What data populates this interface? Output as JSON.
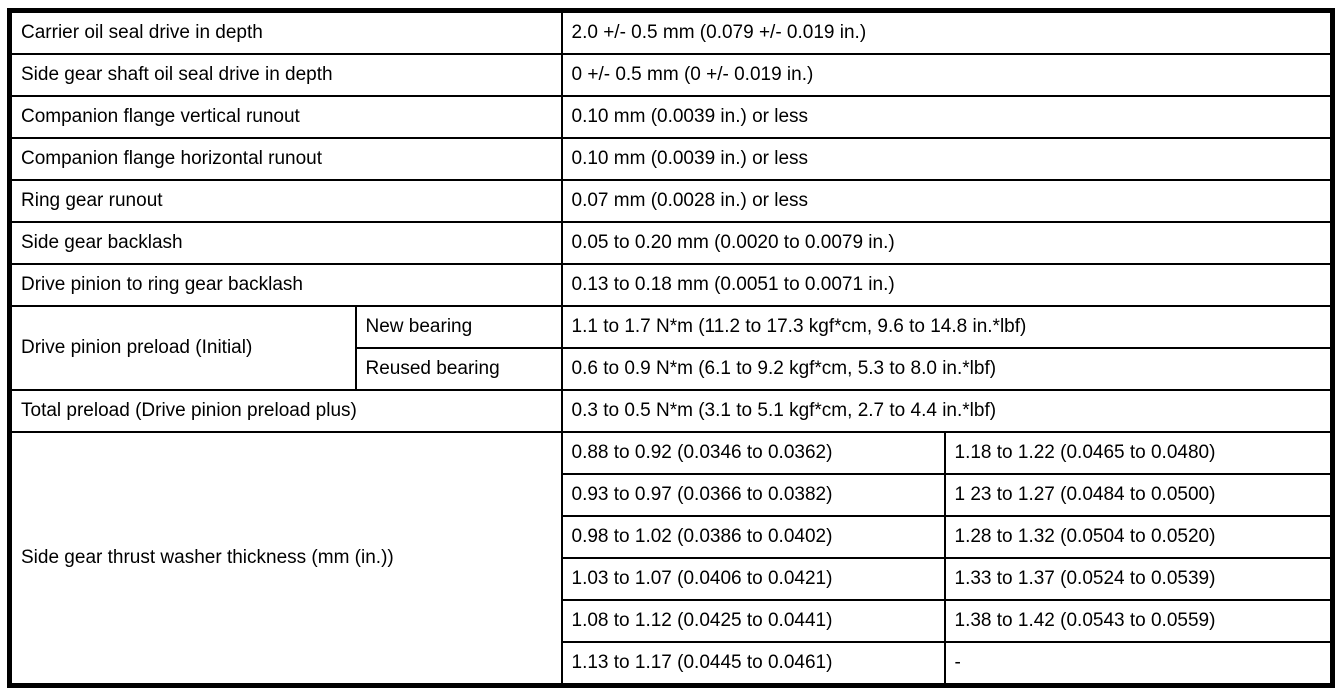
{
  "colors": {
    "border": "#000000",
    "background": "#ffffff",
    "text": "#000000"
  },
  "table": {
    "simple_rows": [
      {
        "label": "Carrier oil seal drive in depth",
        "value": "2.0 +/- 0.5 mm (0.079 +/- 0.019 in.)"
      },
      {
        "label": "Side gear shaft oil seal drive in depth",
        "value": "0 +/- 0.5 mm (0 +/- 0.019 in.)"
      },
      {
        "label": "Companion flange vertical runout",
        "value": "0.10 mm (0.0039 in.) or less"
      },
      {
        "label": "Companion flange horizontal runout",
        "value": "0.10 mm (0.0039 in.) or less"
      },
      {
        "label": "Ring gear runout",
        "value": "0.07 mm (0.0028 in.) or less"
      },
      {
        "label": "Side gear backlash",
        "value": "0.05 to 0.20 mm (0.0020 to 0.0079 in.)"
      },
      {
        "label": "Drive pinion to ring gear backlash",
        "value": "0.13 to 0.18 mm (0.0051 to 0.0071 in.)"
      }
    ],
    "preload_group": {
      "label": "Drive pinion preload (Initial)",
      "rows": [
        {
          "sublabel": "New bearing",
          "value": "1.1 to 1.7 N*m (11.2 to 17.3 kgf*cm, 9.6 to 14.8 in.*lbf)"
        },
        {
          "sublabel": "Reused bearing",
          "value": "0.6 to 0.9 N*m (6.1 to 9.2 kgf*cm, 5.3 to 8.0 in.*lbf)"
        }
      ]
    },
    "total_preload_row": {
      "label": "Total preload (Drive pinion preload plus)",
      "value": "0.3 to 0.5 N*m (3.1 to 5.1 kgf*cm, 2.7 to 4.4 in.*lbf)"
    },
    "thrust_washer_group": {
      "label": "Side gear thrust washer thickness (mm (in.))",
      "rows": [
        {
          "left": "0.88 to 0.92 (0.0346 to 0.0362)",
          "right": "1.18 to 1.22 (0.0465 to 0.0480)"
        },
        {
          "left": "0.93 to 0.97 (0.0366 to 0.0382)",
          "right": "1 23 to 1.27 (0.0484 to 0.0500)"
        },
        {
          "left": "0.98 to 1.02 (0.0386 to 0.0402)",
          "right": "1.28 to 1.32 (0.0504 to 0.0520)"
        },
        {
          "left": "1.03 to 1.07 (0.0406 to 0.0421)",
          "right": "1.33 to 1.37 (0.0524 to 0.0539)"
        },
        {
          "left": "1.08 to 1.12 (0.0425 to 0.0441)",
          "right": "1.38 to 1.42 (0.0543 to 0.0559)"
        },
        {
          "left": "1.13 to 1.17 (0.0445 to 0.0461)",
          "right": "-"
        }
      ]
    }
  }
}
